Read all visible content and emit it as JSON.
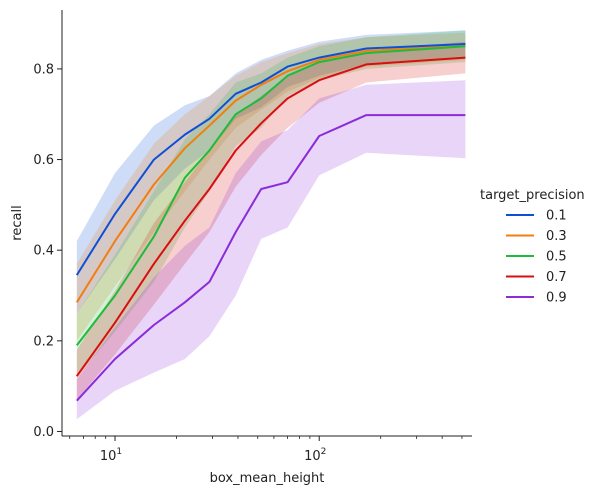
{
  "chart_data": {
    "type": "line",
    "xlabel": "box_mean_height",
    "ylabel": "recall",
    "xscale": "log",
    "xlim": [
      5.5,
      560
    ],
    "ylim": [
      -0.01,
      0.93
    ],
    "x_ticks": [
      {
        "value": 10,
        "base": "10",
        "exp": "1"
      },
      {
        "value": 100,
        "base": "10",
        "exp": "2"
      }
    ],
    "y_ticks": [
      {
        "value": 0.0,
        "label": "0.0"
      },
      {
        "value": 0.2,
        "label": "0.2"
      },
      {
        "value": 0.4,
        "label": "0.4"
      },
      {
        "value": 0.6,
        "label": "0.6"
      },
      {
        "value": 0.8,
        "label": "0.8"
      }
    ],
    "legend": {
      "title": "target_precision",
      "position": "right"
    },
    "x": [
      6.5,
      10,
      15.5,
      22,
      29,
      39,
      52,
      70,
      100,
      170,
      520
    ],
    "series": [
      {
        "name": "0.1",
        "color": "#0f4fd6",
        "values": [
          0.345,
          0.48,
          0.6,
          0.655,
          0.69,
          0.745,
          0.77,
          0.805,
          0.825,
          0.845,
          0.855
        ],
        "lower": [
          0.26,
          0.38,
          0.51,
          0.58,
          0.62,
          0.69,
          0.715,
          0.76,
          0.785,
          0.81,
          0.825
        ],
        "upper": [
          0.42,
          0.57,
          0.675,
          0.72,
          0.74,
          0.79,
          0.82,
          0.84,
          0.86,
          0.875,
          0.885
        ]
      },
      {
        "name": "0.3",
        "color": "#f27e0f",
        "values": [
          0.285,
          0.42,
          0.545,
          0.625,
          0.675,
          0.73,
          0.765,
          0.795,
          0.82,
          0.84,
          0.85
        ],
        "lower": [
          0.2,
          0.32,
          0.44,
          0.53,
          0.6,
          0.67,
          0.71,
          0.75,
          0.78,
          0.805,
          0.82
        ],
        "upper": [
          0.37,
          0.51,
          0.635,
          0.7,
          0.74,
          0.785,
          0.815,
          0.835,
          0.855,
          0.87,
          0.88
        ]
      },
      {
        "name": "0.5",
        "color": "#1fbb3a",
        "values": [
          0.19,
          0.3,
          0.43,
          0.56,
          0.62,
          0.7,
          0.735,
          0.785,
          0.815,
          0.835,
          0.85
        ],
        "lower": [
          0.12,
          0.22,
          0.33,
          0.45,
          0.53,
          0.63,
          0.67,
          0.74,
          0.775,
          0.8,
          0.815
        ],
        "upper": [
          0.26,
          0.39,
          0.53,
          0.645,
          0.7,
          0.77,
          0.79,
          0.825,
          0.85,
          0.87,
          0.885
        ]
      },
      {
        "name": "0.7",
        "color": "#d90f0f",
        "values": [
          0.122,
          0.24,
          0.37,
          0.465,
          0.535,
          0.62,
          0.68,
          0.735,
          0.775,
          0.81,
          0.825
        ],
        "lower": [
          0.07,
          0.17,
          0.28,
          0.37,
          0.44,
          0.54,
          0.61,
          0.67,
          0.725,
          0.77,
          0.79
        ],
        "upper": [
          0.18,
          0.31,
          0.46,
          0.55,
          0.62,
          0.7,
          0.74,
          0.785,
          0.815,
          0.84,
          0.86
        ]
      },
      {
        "name": "0.9",
        "color": "#8b2bd9",
        "values": [
          0.068,
          0.16,
          0.235,
          0.285,
          0.33,
          0.44,
          0.535,
          0.55,
          0.652,
          0.698,
          0.698
        ],
        "lower": [
          0.027,
          0.09,
          0.13,
          0.16,
          0.21,
          0.3,
          0.425,
          0.45,
          0.565,
          0.615,
          0.603
        ],
        "upper": [
          0.115,
          0.23,
          0.34,
          0.41,
          0.45,
          0.57,
          0.64,
          0.665,
          0.735,
          0.765,
          0.775
        ]
      }
    ]
  }
}
